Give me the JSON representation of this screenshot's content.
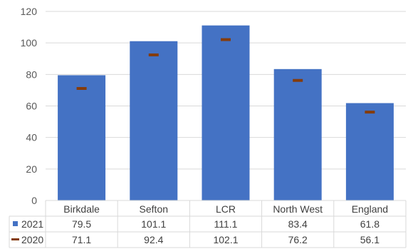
{
  "chart_data": {
    "type": "bar",
    "categories": [
      "Birkdale",
      "Sefton",
      "LCR",
      "North West",
      "England"
    ],
    "series": [
      {
        "name": "2021",
        "style": "bar",
        "color": "#4472C4",
        "values": [
          79.5,
          101.1,
          111.1,
          83.4,
          61.8
        ]
      },
      {
        "name": "2020",
        "style": "dash-marker",
        "color": "#843C0C",
        "values": [
          71.1,
          92.4,
          102.1,
          76.2,
          56.1
        ]
      }
    ],
    "data_table": {
      "rows": [
        {
          "label": "2021",
          "values": [
            "79.5",
            "101.1",
            "111.1",
            "83.4",
            "61.8"
          ]
        },
        {
          "label": "2020",
          "values": [
            "71.1",
            "92.4",
            "102.1",
            "76.2",
            "56.1"
          ]
        }
      ]
    },
    "y_ticks": [
      "0",
      "20",
      "40",
      "60",
      "80",
      "100",
      "120"
    ],
    "ylim": [
      0,
      120
    ],
    "grid": true,
    "legend": "data-table",
    "title": "",
    "xlabel": "",
    "ylabel": ""
  }
}
